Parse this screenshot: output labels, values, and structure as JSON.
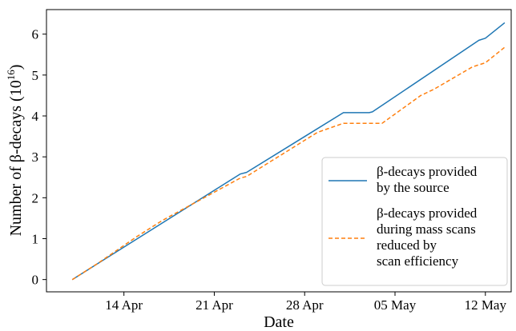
{
  "chart_data": {
    "type": "line",
    "xlabel": "Date",
    "ylabel_main": "Number of β-decays (10",
    "ylabel_sup": "16",
    "ylabel_close": ")",
    "ylim": [
      -0.3,
      6.6
    ],
    "yticks": [
      0,
      1,
      2,
      3,
      4,
      5,
      6
    ],
    "xlim": [
      "2021-04-08",
      "2021-05-14"
    ],
    "xticks": [
      {
        "date": "2021-04-14",
        "label": "14 Apr"
      },
      {
        "date": "2021-04-21",
        "label": "21 Apr"
      },
      {
        "date": "2021-04-28",
        "label": "28 Apr"
      },
      {
        "date": "2021-05-05",
        "label": "05 May"
      },
      {
        "date": "2021-05-12",
        "label": "12 May"
      }
    ],
    "grid": false,
    "legend_position": "bottom-right",
    "series": [
      {
        "legend_lines": [
          "β-decays provided",
          "by the source"
        ],
        "color": "#1f77b4",
        "style": "solid",
        "points": [
          [
            "2021-04-10",
            0.0
          ],
          [
            "2021-04-23",
            2.58
          ],
          [
            "2021-04-23T12:00",
            2.62
          ],
          [
            "2021-05-01",
            4.08
          ],
          [
            "2021-05-03",
            4.08
          ],
          [
            "2021-05-03T06:00",
            4.1
          ],
          [
            "2021-05-11T12:00",
            5.85
          ],
          [
            "2021-05-12",
            5.9
          ],
          [
            "2021-05-13T12:00",
            6.28
          ]
        ]
      },
      {
        "legend_lines": [
          "β-decays provided",
          "during mass scans",
          "reduced by",
          "scan efficiency"
        ],
        "color": "#ff7f0e",
        "style": "dashed",
        "points": [
          [
            "2021-04-10",
            0.0
          ],
          [
            "2021-04-12",
            0.4
          ],
          [
            "2021-04-15",
            1.05
          ],
          [
            "2021-04-17",
            1.45
          ],
          [
            "2021-04-23",
            2.48
          ],
          [
            "2021-04-23T12:00",
            2.52
          ],
          [
            "2021-04-29",
            3.6
          ],
          [
            "2021-05-01",
            3.82
          ],
          [
            "2021-05-04",
            3.82
          ],
          [
            "2021-05-07",
            4.5
          ],
          [
            "2021-05-08",
            4.65
          ],
          [
            "2021-05-11",
            5.2
          ],
          [
            "2021-05-12",
            5.3
          ],
          [
            "2021-05-13T12:00",
            5.68
          ]
        ]
      }
    ]
  }
}
